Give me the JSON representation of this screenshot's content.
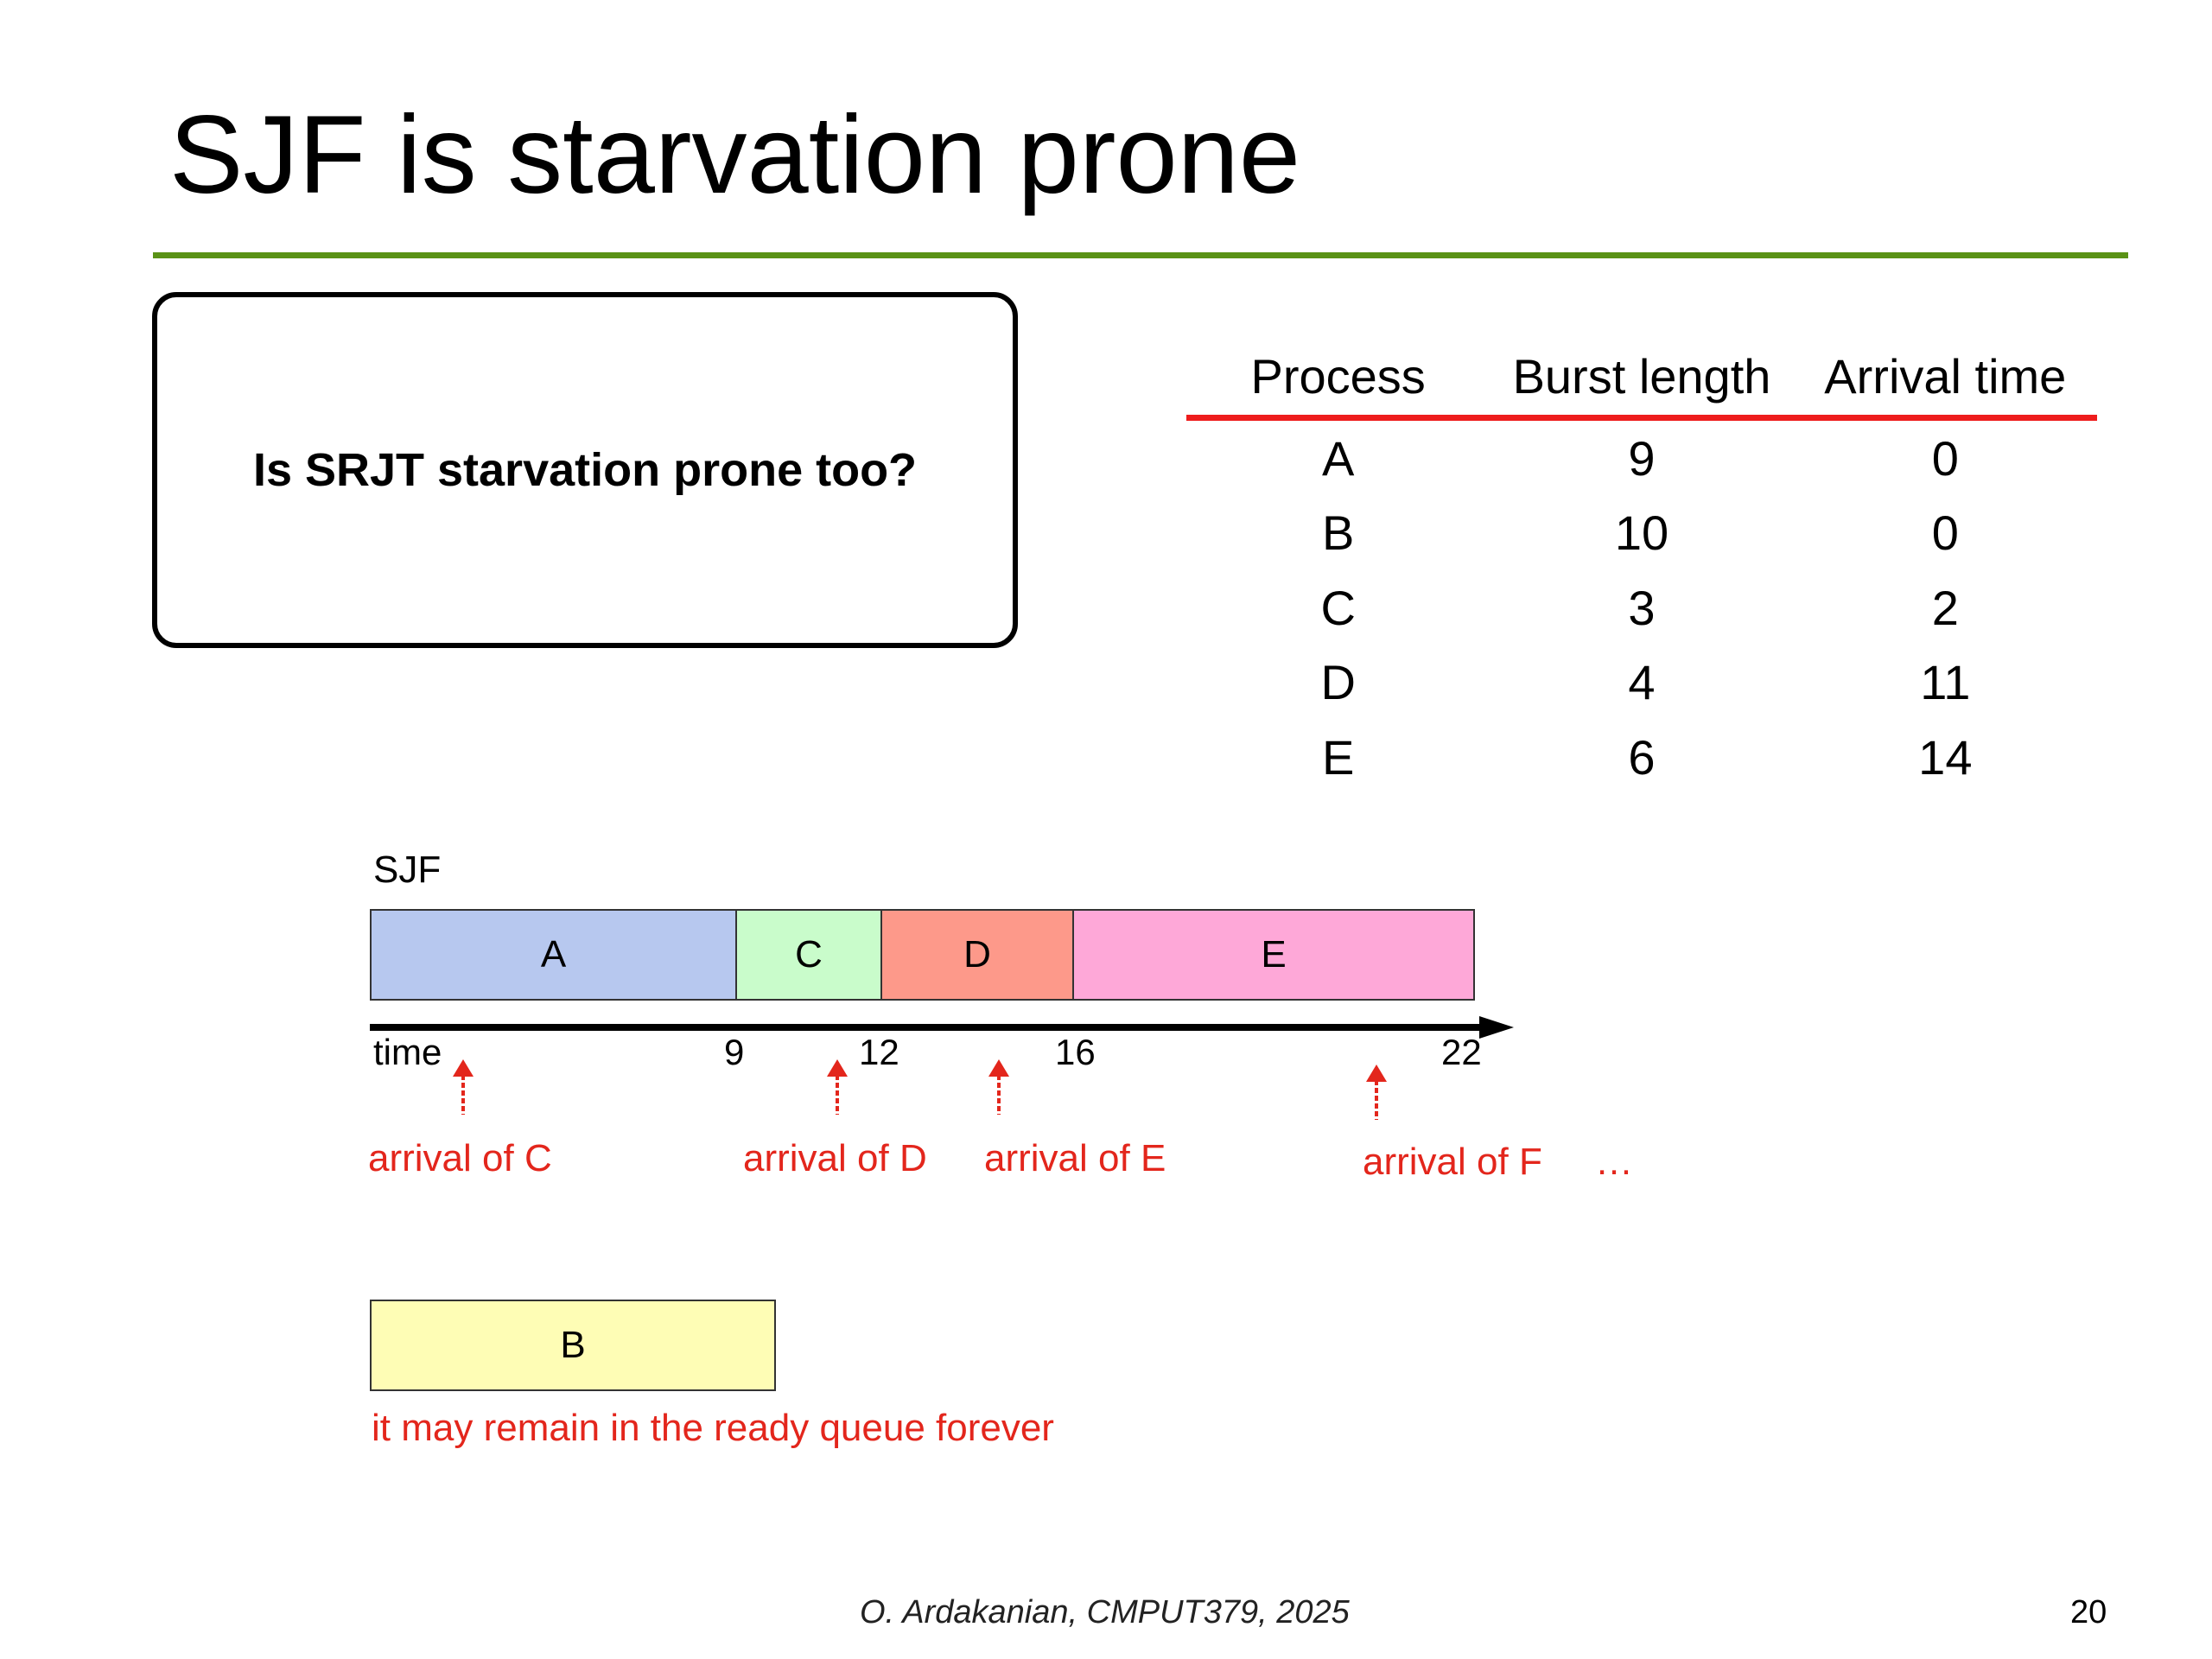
{
  "slide": {
    "title": "SJF is starvation prone",
    "question": "Is SRJT starvation prone too?",
    "footer": "O. Ardakanian, CMPUT379, 2025",
    "page_number": "20"
  },
  "colors": {
    "title_rule": "#5a9216",
    "table_rule": "#ee1c1c",
    "annotation": "#e3261c",
    "seg_A": "#b7c8ef",
    "seg_C": "#c9fccb",
    "seg_D": "#fd998a",
    "seg_E": "#fea8d8",
    "seg_B": "#fefdb5"
  },
  "table": {
    "headers": [
      "Process",
      "Burst length",
      "Arrival time"
    ],
    "rows": [
      [
        "A",
        "9",
        "0"
      ],
      [
        "B",
        "10",
        "0"
      ],
      [
        "C",
        "3",
        "2"
      ],
      [
        "D",
        "4",
        "11"
      ],
      [
        "E",
        "6",
        "14"
      ]
    ]
  },
  "gantt": {
    "label": "SJF",
    "segments": [
      "A",
      "C",
      "D",
      "E"
    ],
    "waiting": "B",
    "axis_label": "time",
    "ticks": [
      "9",
      "12",
      "16",
      "22"
    ]
  },
  "arrivals": [
    "arrival of C",
    "arrival of D",
    "arrival of E",
    "arrival of F"
  ],
  "ellipsis": "…",
  "note": "it may remain in the ready queue forever"
}
